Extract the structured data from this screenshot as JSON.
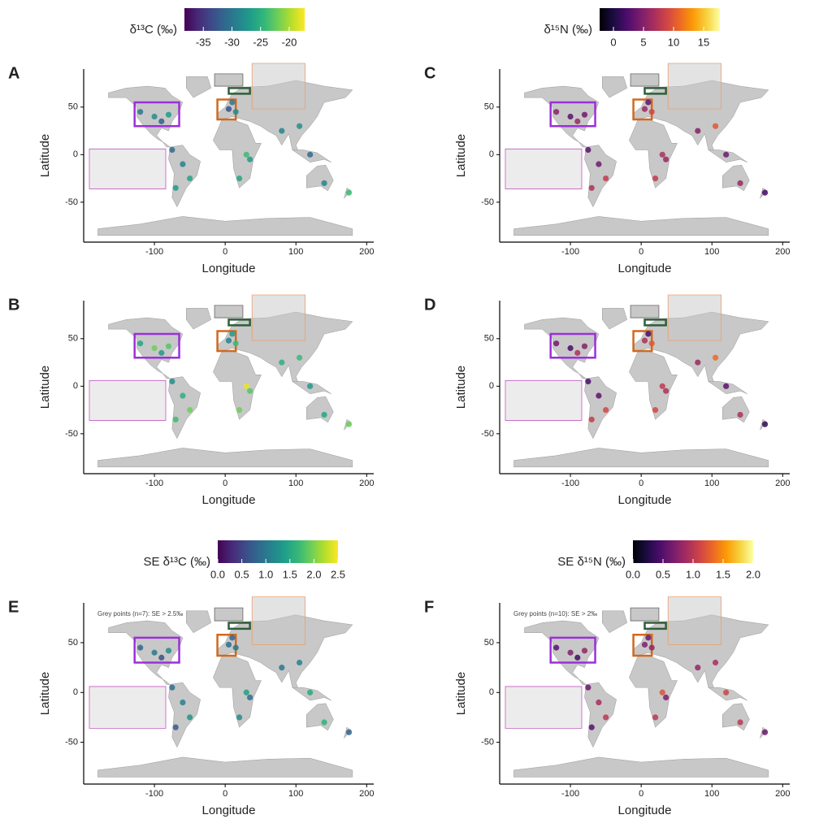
{
  "chart_data": [
    {
      "type": "scatter",
      "label": "A",
      "xlabel": "Longitude",
      "ylabel": "Latitude",
      "xlim": [
        -200,
        210
      ],
      "ylim": [
        -92,
        90
      ],
      "xticks": [
        -100,
        0,
        100,
        200
      ],
      "yticks": [
        -50,
        0,
        50
      ],
      "colorscale": {
        "title": "δ¹³C (‰)",
        "palette": "viridis",
        "lim": [
          -38.3,
          -17.3
        ],
        "ticks": [
          -35,
          -30,
          -25,
          -20
        ]
      },
      "x": [
        -120,
        -100,
        -90,
        -80,
        -75,
        -60,
        -50,
        -70,
        5,
        10,
        15,
        30,
        20,
        35,
        80,
        105,
        120,
        140,
        175
      ],
      "y": [
        45,
        40,
        35,
        42,
        5,
        -10,
        -25,
        -35,
        48,
        55,
        45,
        0,
        -25,
        -5,
        25,
        30,
        0,
        -30,
        -40
      ],
      "values": [
        -30,
        -28,
        -32,
        -27,
        -31,
        -29,
        -26,
        -27,
        -33,
        -30,
        -28,
        -24,
        -26,
        -27,
        -29,
        -28,
        -31,
        -29,
        -24
      ]
    },
    {
      "type": "scatter",
      "label": "B",
      "xlabel": "Longitude",
      "ylabel": "Latitude",
      "xlim": [
        -200,
        210
      ],
      "ylim": [
        -92,
        90
      ],
      "xticks": [
        -100,
        0,
        100,
        200
      ],
      "yticks": [
        -50,
        0,
        50
      ],
      "x": [
        -120,
        -100,
        -90,
        -80,
        -75,
        -60,
        -50,
        -70,
        5,
        10,
        15,
        30,
        20,
        35,
        80,
        105,
        120,
        140,
        175
      ],
      "y": [
        45,
        40,
        35,
        42,
        5,
        -10,
        -25,
        -35,
        48,
        55,
        45,
        0,
        -25,
        -5,
        25,
        30,
        0,
        -30,
        -40
      ],
      "values": [
        -26,
        -22,
        -27,
        -23,
        -28,
        -25,
        -22,
        -24,
        -29,
        -27,
        -24,
        -18,
        -22,
        -23,
        -25,
        -24,
        -27,
        -26,
        -22
      ]
    },
    {
      "type": "scatter",
      "label": "C",
      "xlabel": "Longitude",
      "ylabel": "Latitude",
      "xlim": [
        -200,
        210
      ],
      "ylim": [
        -92,
        90
      ],
      "xticks": [
        -100,
        0,
        100,
        200
      ],
      "yticks": [
        -50,
        0,
        50
      ],
      "colorscale": {
        "title": "δ¹⁵N (‰)",
        "palette": "inferno",
        "lim": [
          -2.3,
          17.7
        ],
        "ticks": [
          0,
          5,
          10,
          15
        ]
      },
      "x": [
        -120,
        -100,
        -90,
        -80,
        -75,
        -60,
        -50,
        -70,
        5,
        10,
        15,
        30,
        20,
        35,
        80,
        105,
        120,
        140,
        175
      ],
      "y": [
        45,
        40,
        35,
        42,
        5,
        -10,
        -25,
        -35,
        48,
        55,
        45,
        0,
        -25,
        -5,
        25,
        30,
        0,
        -30,
        -40
      ],
      "values": [
        5,
        3,
        6,
        4,
        3,
        4,
        8,
        7,
        6,
        3,
        9,
        7,
        8,
        6,
        5,
        10,
        4,
        6,
        2
      ]
    },
    {
      "type": "scatter",
      "label": "D",
      "xlabel": "Longitude",
      "ylabel": "Latitude",
      "xlim": [
        -200,
        210
      ],
      "ylim": [
        -92,
        90
      ],
      "xticks": [
        -100,
        0,
        100,
        200
      ],
      "yticks": [
        -50,
        0,
        50
      ],
      "x": [
        -120,
        -100,
        -90,
        -80,
        -75,
        -60,
        -50,
        -70,
        5,
        10,
        15,
        30,
        20,
        35,
        80,
        105,
        120,
        140,
        175
      ],
      "y": [
        45,
        40,
        35,
        42,
        5,
        -10,
        -25,
        -35,
        48,
        55,
        45,
        0,
        -25,
        -5,
        25,
        30,
        0,
        -30,
        -40
      ],
      "values": [
        4,
        2,
        7,
        5,
        2,
        3,
        9,
        8,
        7,
        2,
        10,
        8,
        9,
        7,
        6,
        11,
        3,
        7,
        1
      ]
    },
    {
      "type": "scatter",
      "label": "E",
      "xlabel": "Longitude",
      "ylabel": "Latitude",
      "annotation": "Grey points (n=7): SE > 2.5‰",
      "xlim": [
        -200,
        210
      ],
      "ylim": [
        -92,
        90
      ],
      "xticks": [
        -100,
        0,
        100,
        200
      ],
      "yticks": [
        -50,
        0,
        50
      ],
      "colorscale": {
        "title": "SE δ¹³C (‰)",
        "palette": "viridis",
        "lim": [
          0,
          2.5
        ],
        "ticks": [
          {
            "value": 0,
            "label": "0.0"
          },
          0.5,
          {
            "value": 1,
            "label": "1.0"
          },
          1.5,
          {
            "value": 2,
            "label": "2.0"
          },
          2.5
        ]
      },
      "x": [
        -120,
        -100,
        -90,
        -80,
        -75,
        -60,
        -50,
        -70,
        5,
        10,
        15,
        30,
        20,
        35,
        80,
        105,
        120,
        140,
        175
      ],
      "y": [
        45,
        40,
        35,
        42,
        5,
        -10,
        -25,
        -35,
        48,
        55,
        45,
        0,
        -25,
        -5,
        25,
        30,
        0,
        -30,
        -40
      ],
      "values": [
        0.8,
        1.0,
        0.6,
        1.2,
        0.9,
        1.1,
        1.3,
        0.7,
        0.9,
        0.8,
        1.0,
        1.4,
        1.2,
        0.9,
        1.0,
        1.1,
        1.5,
        1.6,
        0.8
      ]
    },
    {
      "type": "scatter",
      "label": "F",
      "xlabel": "Longitude",
      "ylabel": "Latitude",
      "annotation": "Grey points (n=10): SE > 2‰",
      "xlim": [
        -200,
        210
      ],
      "ylim": [
        -92,
        90
      ],
      "xticks": [
        -100,
        0,
        100,
        200
      ],
      "yticks": [
        -50,
        0,
        50
      ],
      "colorscale": {
        "title": "SE δ¹⁵N (‰)",
        "palette": "inferno",
        "lim": [
          0,
          2.0
        ],
        "ticks": [
          {
            "value": 0,
            "label": "0.0"
          },
          0.5,
          {
            "value": 1,
            "label": "1.0"
          },
          1.5,
          {
            "value": 2,
            "label": "2.0"
          }
        ]
      },
      "x": [
        -120,
        -100,
        -90,
        -80,
        -75,
        -60,
        -50,
        -70,
        5,
        10,
        15,
        30,
        20,
        35,
        80,
        105,
        120,
        140,
        175
      ],
      "y": [
        45,
        40,
        35,
        42,
        5,
        -10,
        -25,
        -35,
        48,
        55,
        45,
        0,
        -25,
        -5,
        25,
        30,
        0,
        -30,
        -40
      ],
      "values": [
        0.5,
        0.7,
        0.4,
        0.8,
        0.6,
        0.9,
        1.0,
        0.5,
        0.7,
        0.6,
        0.8,
        1.2,
        1.0,
        0.7,
        0.8,
        0.9,
        1.1,
        1.0,
        0.6
      ]
    }
  ]
}
